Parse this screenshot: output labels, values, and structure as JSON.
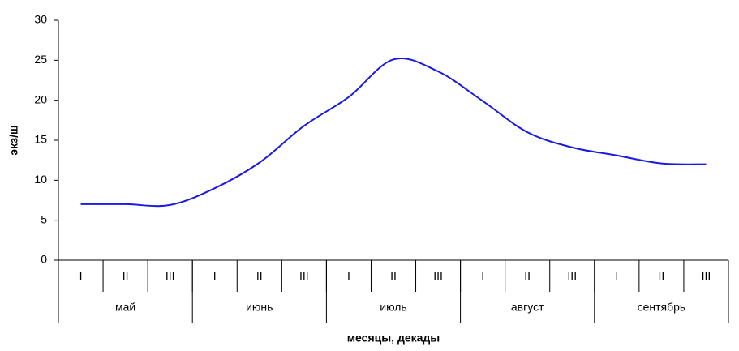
{
  "chart_data": {
    "type": "line",
    "x_label": "месяцы, декады",
    "y_label": "экз/ш",
    "categories": [
      "I",
      "II",
      "III",
      "I",
      "II",
      "III",
      "I",
      "II",
      "III",
      "I",
      "II",
      "III",
      "I",
      "II",
      "III"
    ],
    "category_groups": [
      "май",
      "июнь",
      "июль",
      "август",
      "сентябрь"
    ],
    "series": [
      {
        "color": "#1a1ae6",
        "values": [
          7,
          7,
          6.9,
          9,
          12.2,
          16.8,
          20.4,
          25.1,
          23.6,
          19.9,
          16,
          14.1,
          13.1,
          12.1,
          12
        ]
      }
    ],
    "ylim": [
      0,
      30
    ],
    "yticks": [
      0,
      5,
      10,
      15,
      20,
      25,
      30
    ],
    "grid": false
  }
}
